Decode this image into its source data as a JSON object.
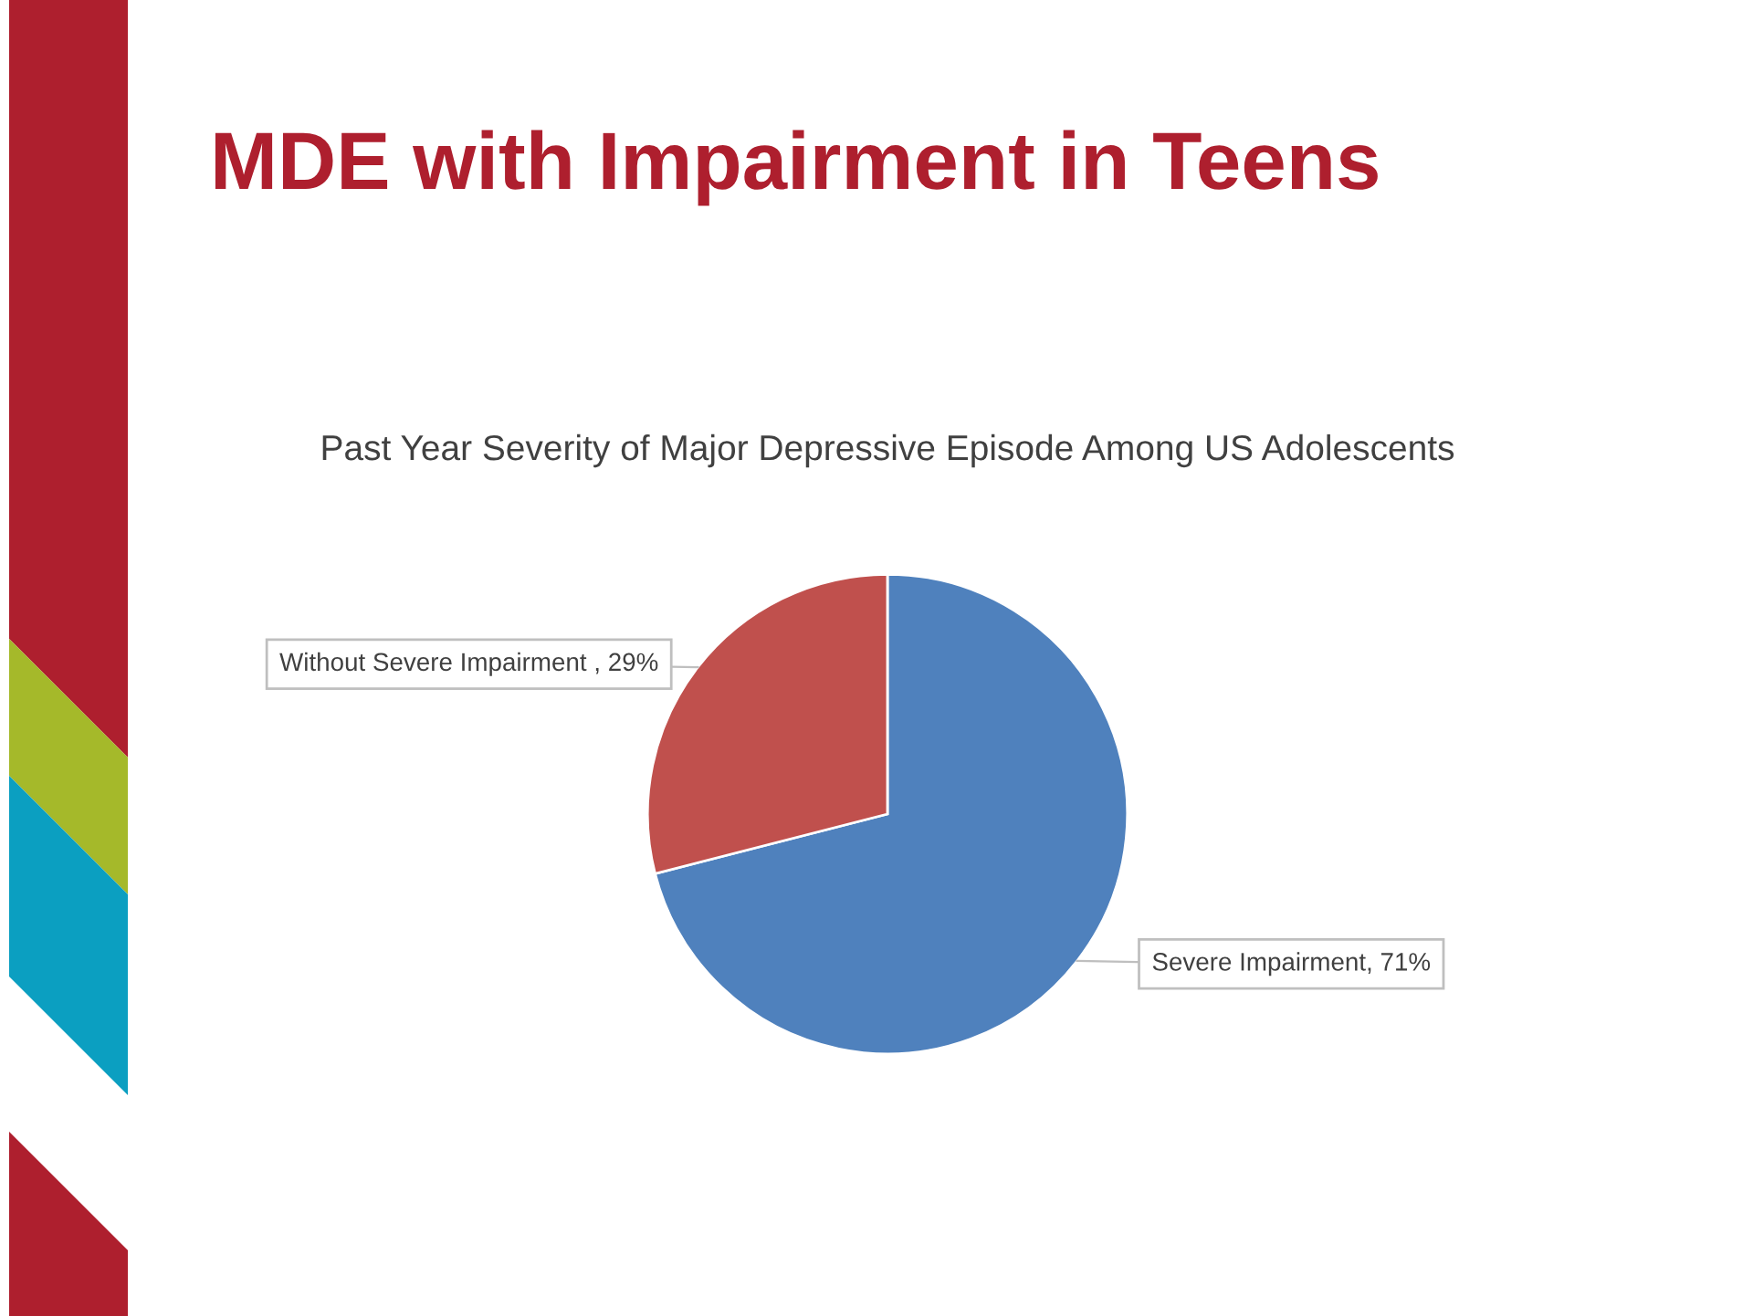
{
  "chart_data": {
    "type": "pie",
    "title": "MDE with Impairment in Teens",
    "subtitle": "Past Year Severity of Major Depressive Episode Among US Adolescents",
    "categories": [
      "Severe Impairment",
      "Without Severe Impairment"
    ],
    "value_labels": [
      ", 71%",
      " , 29%"
    ],
    "values": [
      71,
      29
    ],
    "colors": [
      "#4f81bd",
      "#c0504d"
    ],
    "legend": false
  }
}
